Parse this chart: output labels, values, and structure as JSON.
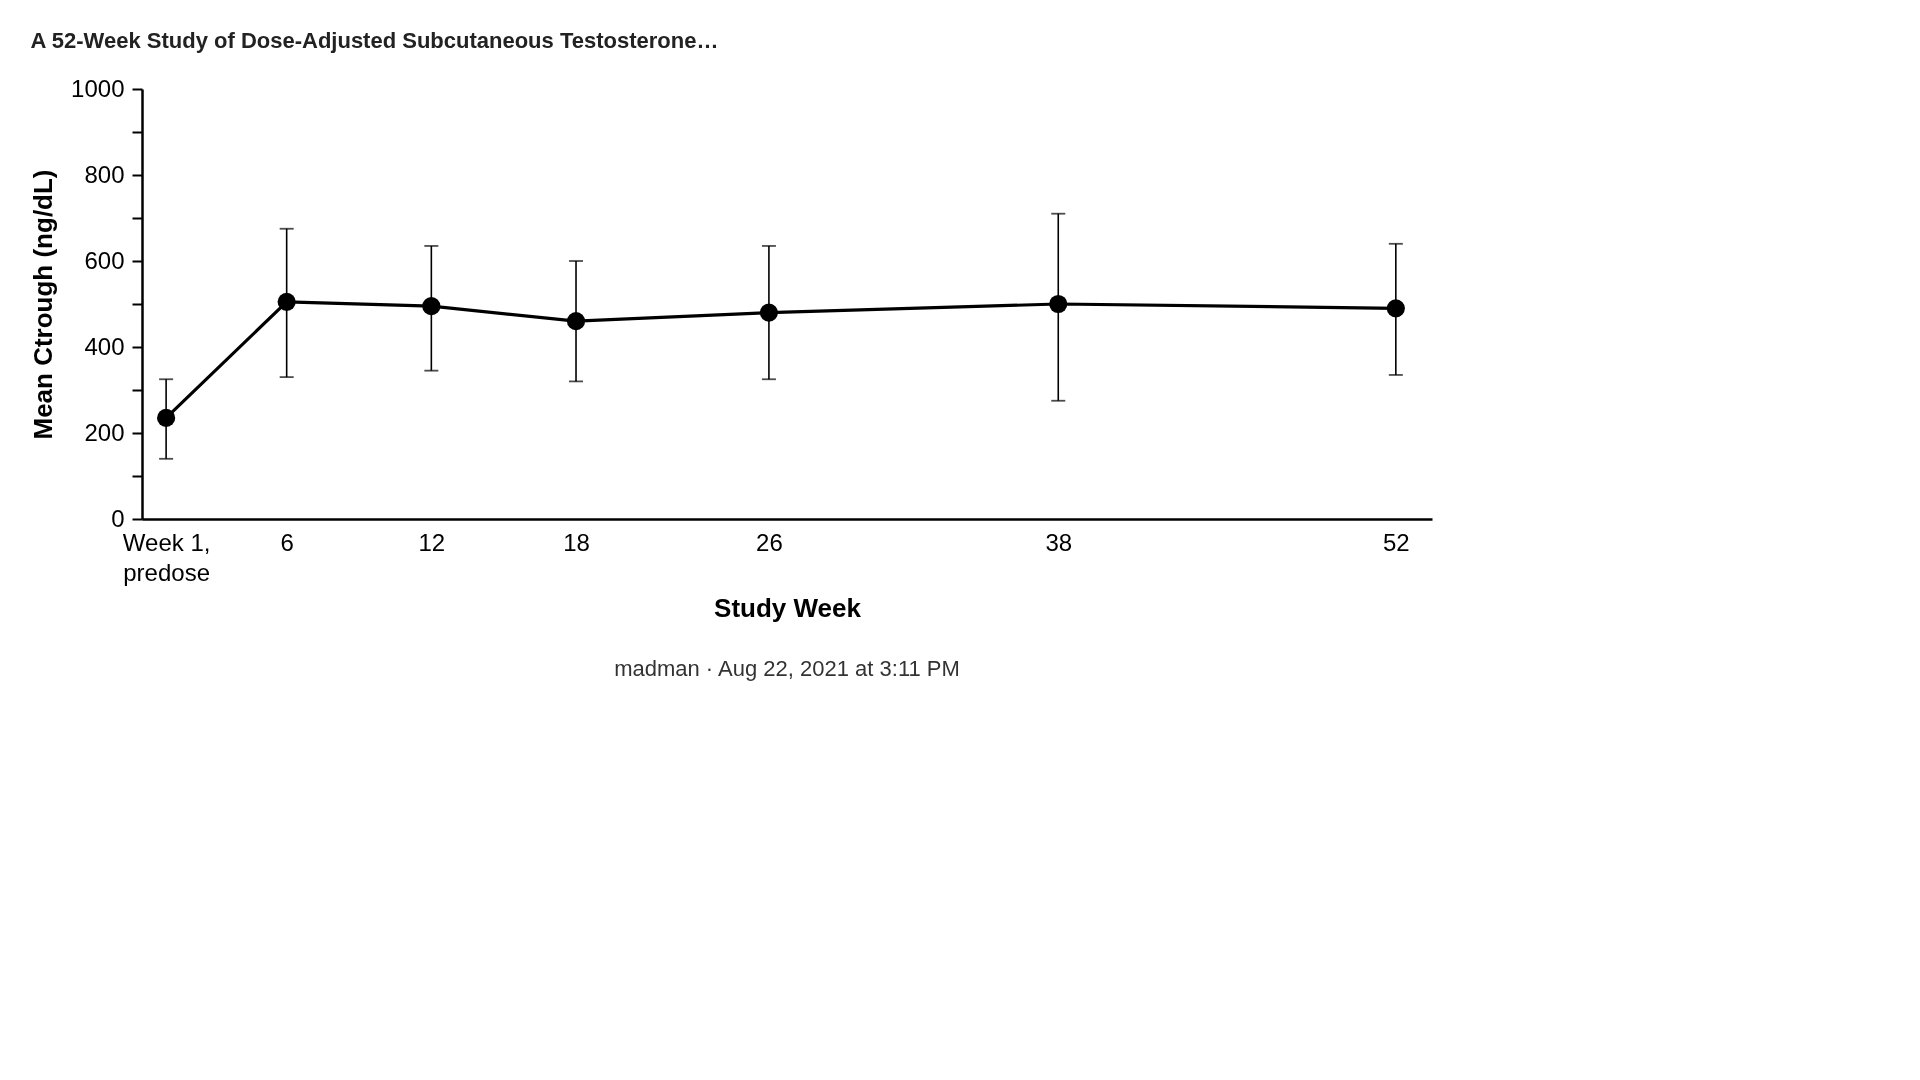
{
  "chart_data": {
    "type": "line",
    "title": "A 52-Week Study of Dose-Adjusted Subcutaneous Testosterone…",
    "xlabel": "Study Week",
    "ylabel": "Mean Ctrough (ng/dL)",
    "annotations": [
      "madman · Aug 22, 2021 at 3:11 PM"
    ],
    "x": [
      1,
      6,
      12,
      18,
      26,
      38,
      52
    ],
    "series": [
      {
        "color": "#000000",
        "values": [
          235,
          505,
          495,
          460,
          480,
          500,
          490
        ],
        "errors": [
          [
            140,
            325
          ],
          [
            330,
            675
          ],
          [
            345,
            635
          ],
          [
            320,
            600
          ],
          [
            325,
            635
          ],
          [
            275,
            710
          ],
          [
            335,
            640
          ]
        ]
      }
    ],
    "xlim": [
      0,
      53.5
    ],
    "xticks": [
      {
        "value": 1,
        "label": "Week 1,\npredose"
      },
      6,
      12,
      18,
      26,
      38,
      52
    ],
    "ylim": [
      0,
      1000
    ],
    "yticks": [
      0,
      {
        "value": 100,
        "label": null
      },
      200,
      {
        "value": 300,
        "label": null
      },
      400,
      {
        "value": 500,
        "label": null
      },
      600,
      {
        "value": 700,
        "label": null
      },
      800,
      {
        "value": 900,
        "label": null
      },
      1000
    ],
    "marker": "circle",
    "line_style": "solid"
  }
}
